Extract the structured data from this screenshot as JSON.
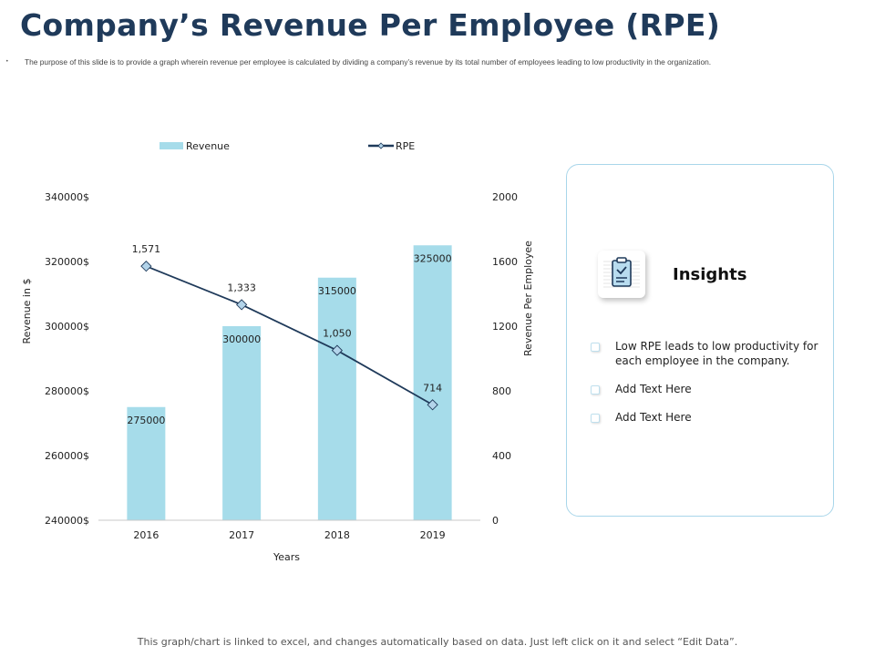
{
  "slide": {
    "title": "Company’s Revenue Per Employee (RPE)",
    "bullet": "•",
    "subtitle": "The purpose of this slide is to provide a graph wherein revenue per employee is calculated by dividing a company’s revenue by its total number of employees leading to low productivity in the organization.",
    "footer": "This graph/chart is linked to excel, and changes automatically based on data. Just left click on it and select “Edit Data”."
  },
  "colors": {
    "bar": "#a6dcea",
    "line": "#1f3a5a",
    "marker_fill": "#b3d4ea",
    "title": "#1f3a5a",
    "panel_border": "#a9d6ea",
    "axis": "#c8c8c8"
  },
  "chart_data": {
    "type": "bar",
    "categories": [
      "2016",
      "2017",
      "2018",
      "2019"
    ],
    "xlabel": "Years",
    "ylabel": "Revenue in $",
    "y2label": "Revenue Per Employee",
    "ylim": [
      240000,
      340000
    ],
    "y2lim": [
      0,
      2000
    ],
    "yticks": [
      "240000$",
      "260000$",
      "280000$",
      "300000$",
      "320000$",
      "340000$"
    ],
    "y2ticks": [
      "0",
      "400",
      "800",
      "1200",
      "1600",
      "2000"
    ],
    "legend_position": "top",
    "grid": false,
    "series": [
      {
        "name": "Revenue",
        "type": "bar",
        "axis": "left",
        "values": [
          275000,
          300000,
          315000,
          325000
        ],
        "labels": [
          "275000",
          "300000",
          "315000",
          "325000"
        ]
      },
      {
        "name": "RPE",
        "type": "line",
        "axis": "right",
        "values": [
          1571,
          1333,
          1050,
          714
        ],
        "labels": [
          "1,571",
          "1,333",
          "1,050",
          "714"
        ]
      }
    ]
  },
  "insights": {
    "icon": "clipboard-check-icon",
    "title": "Insights",
    "items": [
      {
        "text": "Low RPE leads to low productivity for each employee in the company."
      },
      {
        "text": "Add Text Here"
      },
      {
        "text": "Add Text Here"
      }
    ]
  }
}
